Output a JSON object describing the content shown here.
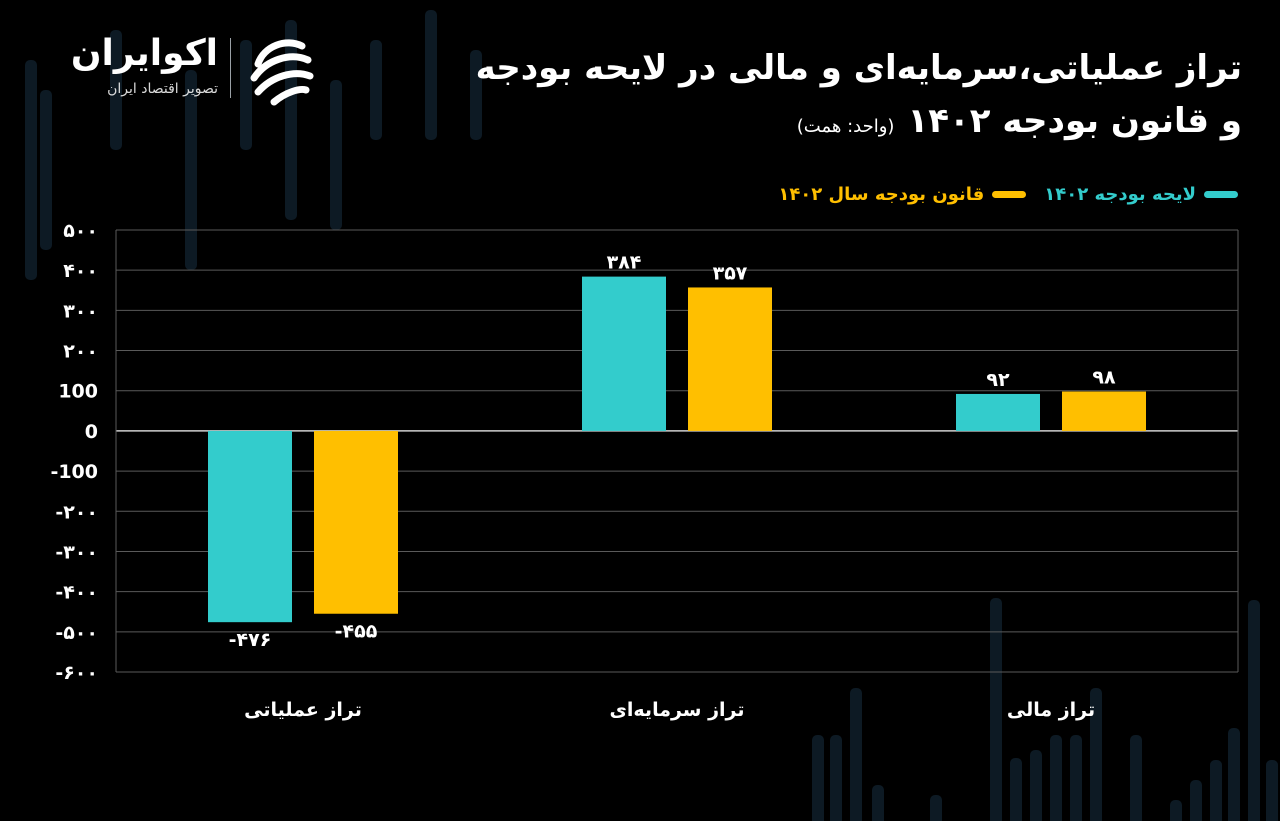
{
  "logo": {
    "name": "اکوایران",
    "tagline": "تصویر اقتصاد ایران",
    "icon": "ecoiran-logo-icon"
  },
  "header": {
    "title_line1": "تراز عملیاتی،سرمایه‌ای و مالی در لایحه بودجه",
    "title_line2": "و قانون بودجه ۱۴۰۲",
    "unit": "(واحد: همت)"
  },
  "colors": {
    "background": "#000000",
    "bill": "#33cccc",
    "law": "#ffbf00",
    "grid": "#5a5a5a",
    "decor": "#0d1a24"
  },
  "chart_data": {
    "type": "bar",
    "title": "تراز عملیاتی،سرمایه‌ای و مالی در لایحه بودجه و قانون بودجه ۱۴۰۲",
    "unit": "(واحد: همت)",
    "categories": [
      "تراز عملیاتی",
      "تراز سرمایه‌ای",
      "تراز مالی"
    ],
    "series": [
      {
        "name": "لایحه بودجه ۱۴۰۲",
        "color": "#33cccc",
        "values": [
          -476,
          384,
          92
        ],
        "labels": [
          "-۴۷۶",
          "۳۸۴",
          "۹۲"
        ]
      },
      {
        "name": "قانون بودجه سال ۱۴۰۲",
        "color": "#ffbf00",
        "values": [
          -455,
          357,
          98
        ],
        "labels": [
          "-۴۵۵",
          "۳۵۷",
          "۹۸"
        ]
      }
    ],
    "ylim": [
      -600,
      500
    ],
    "yticks": [
      500,
      400,
      300,
      200,
      100,
      0,
      -100,
      -200,
      -300,
      -400,
      -500,
      -600
    ],
    "ytick_labels": [
      "۵۰۰",
      "۴۰۰",
      "۳۰۰",
      "۲۰۰",
      "100",
      "0",
      "-100",
      "-۲۰۰",
      "-۳۰۰",
      "-۴۰۰",
      "-۵۰۰",
      "-۶۰۰"
    ],
    "grid": true,
    "legend_position": "top-right"
  }
}
